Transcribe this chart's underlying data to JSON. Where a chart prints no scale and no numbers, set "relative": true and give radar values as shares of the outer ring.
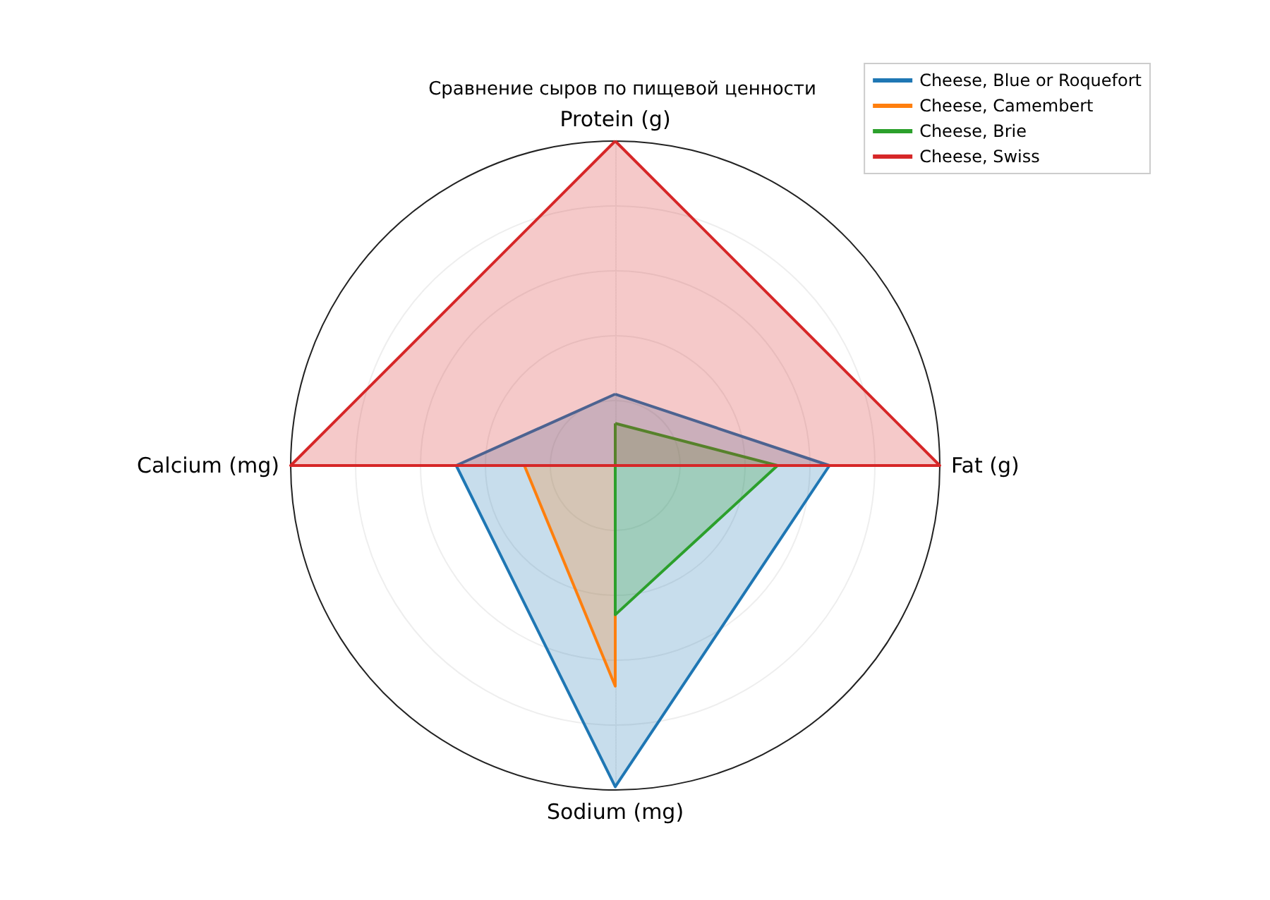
{
  "chart_data": {
    "type": "radar",
    "title": "Сравнение сыров по пищевой ценности",
    "relative": true,
    "categories": [
      "Protein (g)",
      "Fat (g)",
      "Sodium (mg)",
      "Calcium (mg)"
    ],
    "series": [
      {
        "name": "Cheese, Blue or Roquefort",
        "color": "#1f77b4",
        "values": [
          0.22,
          0.66,
          0.99,
          0.49
        ]
      },
      {
        "name": "Cheese, Camembert",
        "color": "#ff7f0e",
        "values": [
          0,
          0,
          0.68,
          0.28
        ]
      },
      {
        "name": "Cheese, Brie",
        "color": "#2ca02c",
        "values": [
          0.13,
          0.5,
          0.46,
          0
        ]
      },
      {
        "name": "Cheese, Swiss",
        "color": "#d62728",
        "values": [
          1,
          1,
          0,
          1
        ]
      }
    ],
    "legend": "top right",
    "grid": true,
    "marker": "none",
    "line_style": "solid"
  }
}
